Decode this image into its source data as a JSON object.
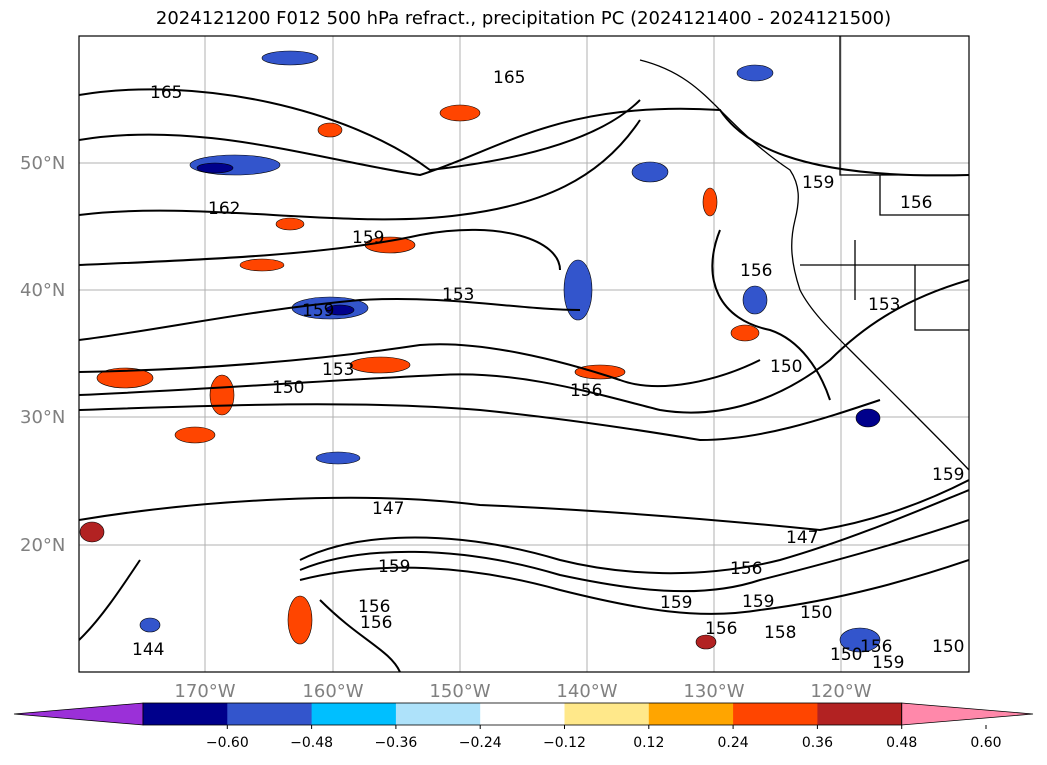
{
  "title": "2024121200 F012 500 hPa refract., precipitation PC (2024121400 - 2024121500)",
  "map": {
    "lat_labels": [
      "50°N",
      "40°N",
      "30°N",
      "20°N"
    ],
    "lon_labels": [
      "170°W",
      "160°W",
      "150°W",
      "140°W",
      "130°W",
      "120°W"
    ],
    "contour_labels": [
      "165",
      "165",
      "162",
      "159",
      "159",
      "153",
      "153",
      "150",
      "156",
      "156",
      "153",
      "150",
      "159",
      "156",
      "159",
      "147",
      "147",
      "159",
      "156",
      "159",
      "159",
      "156",
      "150",
      "156",
      "158",
      "150",
      "159",
      "150",
      "156",
      "156",
      "144"
    ]
  },
  "colorbar": {
    "tick_labels": [
      "−0.60",
      "−0.48",
      "−0.36",
      "−0.24",
      "−0.12",
      "0.12",
      "0.24",
      "0.36",
      "0.48",
      "0.60"
    ],
    "colors": [
      "#9b30d8",
      "#00008b",
      "#3355cc",
      "#00bfff",
      "#aee2fa",
      "#ffffff",
      "#ffe88a",
      "#ffa500",
      "#ff4500",
      "#b22222",
      "#ff88aa"
    ]
  }
}
